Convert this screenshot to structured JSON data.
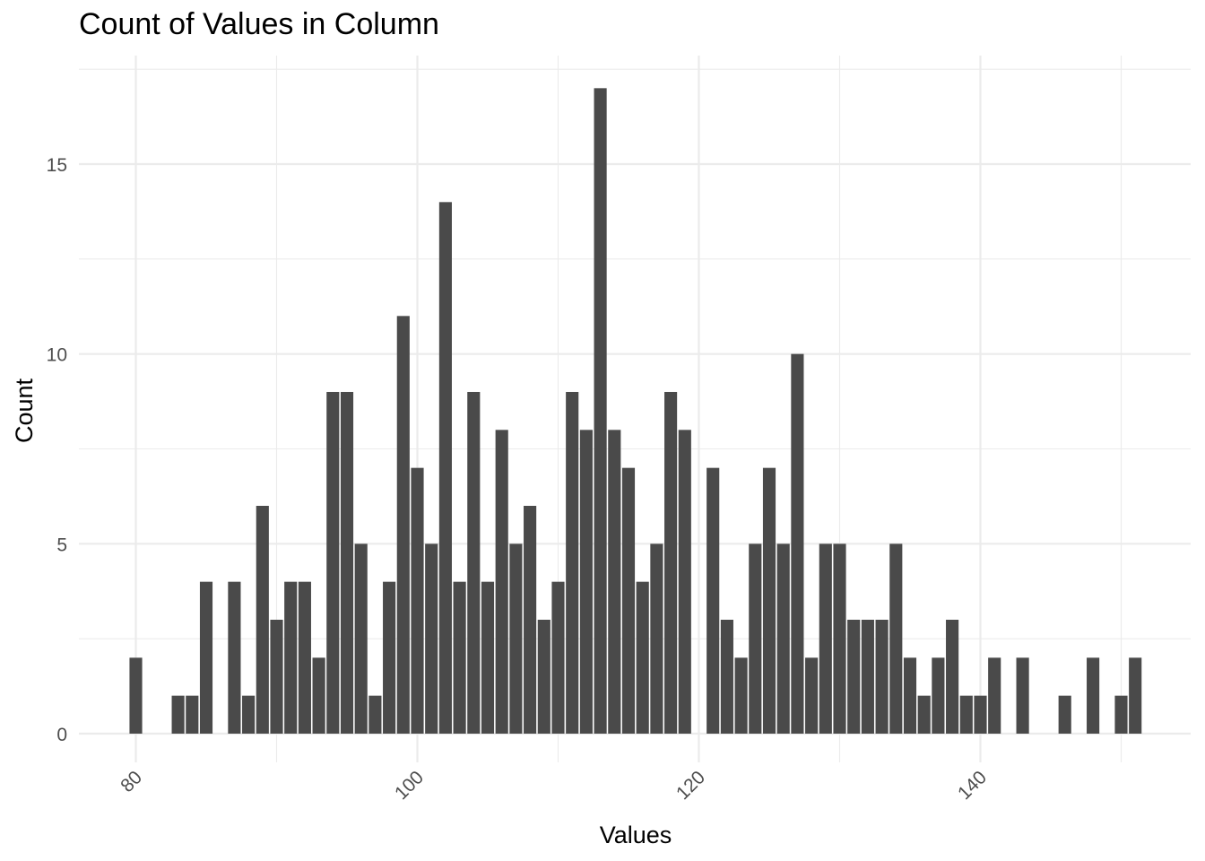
{
  "chart_data": {
    "type": "bar",
    "title": "Count of Values in Column",
    "xlabel": "Values",
    "ylabel": "Count",
    "xlim": [
      76,
      153
    ],
    "ylim": [
      0,
      17.5
    ],
    "x_ticks": [
      80,
      100,
      120,
      140
    ],
    "y_ticks": [
      0,
      5,
      10,
      15
    ],
    "grid": true,
    "bar_color": "#4a4a4a",
    "grid_color": "#ebebeb",
    "series": [
      {
        "x": [
          80,
          83,
          84,
          85,
          87,
          88,
          89,
          90,
          91,
          92,
          93,
          94,
          95,
          96,
          97,
          98,
          99,
          100,
          101,
          102,
          103,
          104,
          105,
          106,
          107,
          108,
          109,
          110,
          111,
          112,
          113,
          114,
          115,
          116,
          117,
          118,
          119,
          121,
          122,
          123,
          124,
          125,
          126,
          127,
          128,
          129,
          130,
          131,
          132,
          133,
          134,
          135,
          136,
          137,
          138,
          139,
          140,
          141,
          143,
          146,
          148,
          150,
          151
        ],
        "values": [
          2,
          1,
          1,
          4,
          4,
          1,
          6,
          3,
          4,
          4,
          2,
          9,
          9,
          5,
          1,
          4,
          11,
          7,
          5,
          14,
          4,
          9,
          4,
          8,
          5,
          6,
          3,
          4,
          9,
          8,
          17,
          8,
          7,
          4,
          5,
          9,
          8,
          7,
          3,
          2,
          5,
          7,
          5,
          10,
          2,
          5,
          5,
          3,
          3,
          3,
          5,
          2,
          1,
          2,
          3,
          1,
          1,
          2,
          2,
          1,
          2,
          1,
          2
        ]
      }
    ]
  }
}
